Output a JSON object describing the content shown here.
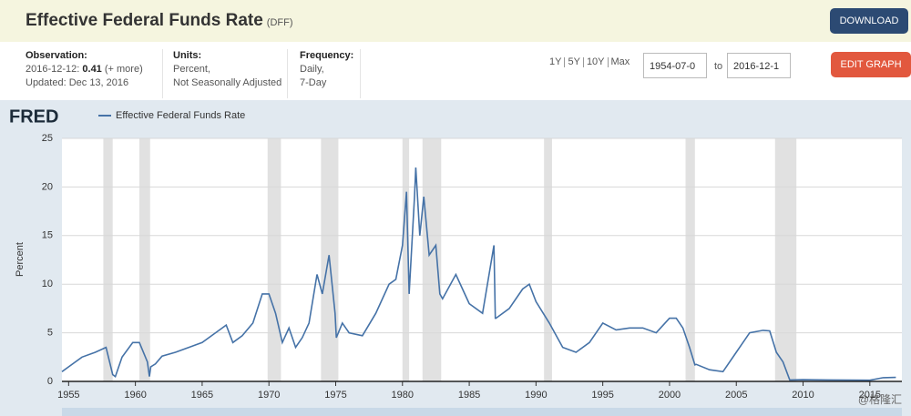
{
  "header": {
    "title": "Effective Federal Funds Rate",
    "series_id": "(DFF)",
    "download": "DOWNLOAD",
    "edit_graph": "EDIT GRAPH"
  },
  "info": {
    "observation": {
      "label": "Observation:",
      "date": "2016-12-12:",
      "value": "0.41",
      "more": "(+ more)",
      "updated": "Updated: Dec 13, 2016"
    },
    "units": {
      "label": "Units:",
      "lines": [
        "Percent,",
        "Not Seasonally Adjusted"
      ]
    },
    "frequency": {
      "label": "Frequency:",
      "lines": [
        "Daily,",
        "7-Day"
      ]
    },
    "range_options": [
      "1Y",
      "5Y",
      "10Y",
      "Max"
    ],
    "date_from": "1954-07-0",
    "date_to_label": "to",
    "date_to": "2016-12-1"
  },
  "logo": "FRED",
  "watermark": "@格隆汇",
  "chart_data": {
    "type": "line",
    "y_label": "Percent",
    "x": [
      1954.5,
      1955,
      1956,
      1957,
      1957.8,
      1958.3,
      1958.5,
      1959,
      1959.8,
      1960.3,
      1960.9,
      1961.05,
      1961.15,
      1961.5,
      1962,
      1963,
      1964,
      1965,
      1966,
      1966.8,
      1967.3,
      1968,
      1968.8,
      1969.5,
      1970,
      1970.5,
      1971,
      1971.5,
      1972,
      1972.5,
      1973,
      1973.6,
      1974,
      1974.5,
      1974.95,
      1975.05,
      1975.5,
      1976,
      1977,
      1978,
      1979,
      1979.5,
      1980,
      1980.3,
      1980.5,
      1980.9,
      1981,
      1981.3,
      1981.6,
      1982,
      1982.5,
      1982.8,
      1983,
      1984,
      1984.5,
      1985,
      1986,
      1986.85,
      1986.95,
      1987,
      1988,
      1989,
      1989.5,
      1990,
      1991,
      1992,
      1993,
      1994,
      1995,
      1996,
      1997,
      1998,
      1999,
      2000,
      2000.5,
      2001,
      2001.5,
      2001.9,
      2002,
      2003,
      2004,
      2005,
      2006,
      2007,
      2007.5,
      2008,
      2008.5,
      2009,
      2010,
      2012,
      2015,
      2016,
      2016.95
    ],
    "series": [
      {
        "name": "Effective Federal Funds Rate",
        "color": "#4572a7",
        "values": [
          1.0,
          1.5,
          2.5,
          3.0,
          3.5,
          0.7,
          0.5,
          2.5,
          4.0,
          4.0,
          2.0,
          0.5,
          1.5,
          1.8,
          2.6,
          3.0,
          3.5,
          4.0,
          5.0,
          5.8,
          4.0,
          4.7,
          6.0,
          9.0,
          9.0,
          7.0,
          4.0,
          5.5,
          3.5,
          4.5,
          6.0,
          11.0,
          9.0,
          13.0,
          7.0,
          4.5,
          6.0,
          5.0,
          4.7,
          7.0,
          10.0,
          10.5,
          14.0,
          19.5,
          9.0,
          19.0,
          22.0,
          15.0,
          19.0,
          13.0,
          14.0,
          9.0,
          8.5,
          11.0,
          9.5,
          8.0,
          7.0,
          14.0,
          6.5,
          6.5,
          7.5,
          9.5,
          10.0,
          8.2,
          6.0,
          3.5,
          3.0,
          4.0,
          6.0,
          5.3,
          5.5,
          5.5,
          5.0,
          6.5,
          6.5,
          5.5,
          3.5,
          1.7,
          1.75,
          1.2,
          1.0,
          3.0,
          5.0,
          5.25,
          5.2,
          3.0,
          2.0,
          0.15,
          0.18,
          0.15,
          0.12,
          0.38,
          0.41
        ]
      }
    ],
    "recessions": [
      [
        1957.6,
        1958.3
      ],
      [
        1960.3,
        1961.1
      ],
      [
        1969.9,
        1970.9
      ],
      [
        1973.9,
        1975.2
      ],
      [
        1980.0,
        1980.5
      ],
      [
        1981.5,
        1982.9
      ],
      [
        1990.6,
        1991.2
      ],
      [
        2001.2,
        2001.9
      ],
      [
        2007.9,
        2009.5
      ]
    ],
    "xlim": [
      1954.5,
      2017.4
    ],
    "xticks": [
      1955,
      1960,
      1965,
      1970,
      1975,
      1980,
      1985,
      1990,
      1995,
      2000,
      2005,
      2010,
      2015
    ],
    "ylim": [
      0,
      25
    ],
    "yticks": [
      0,
      5,
      10,
      15,
      20,
      25
    ],
    "grid": true
  }
}
